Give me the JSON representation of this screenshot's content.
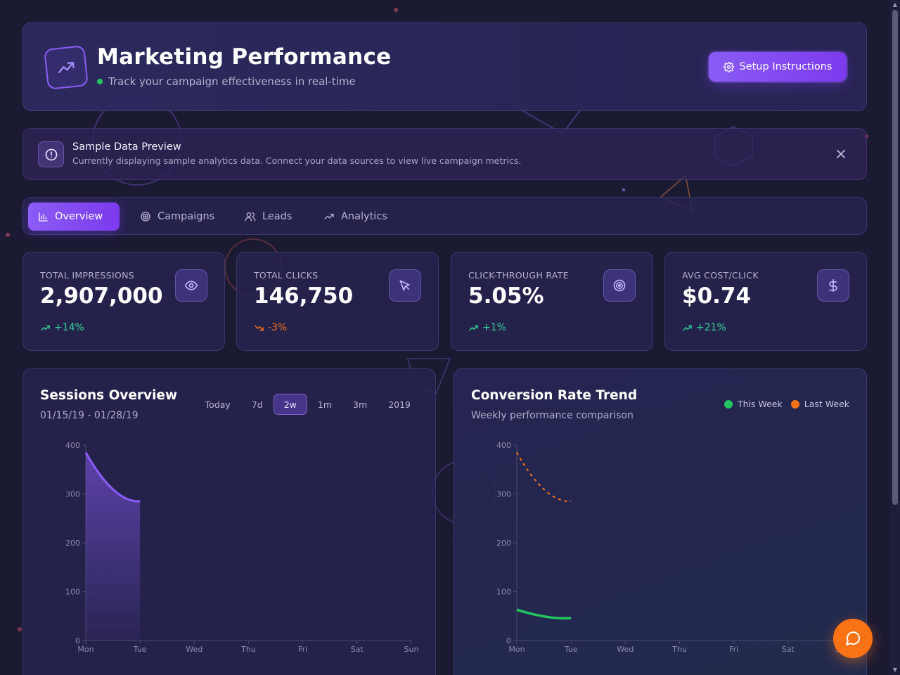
{
  "header": {
    "title": "Marketing Performance",
    "subtitle": "Track your campaign effectiveness in real-time",
    "setup_label": "Setup Instructions"
  },
  "banner": {
    "title": "Sample Data Preview",
    "text": "Currently displaying sample analytics data. Connect your data sources to view live campaign metrics."
  },
  "tabs": [
    {
      "label": "Overview",
      "icon": "bar-chart-icon",
      "active": true
    },
    {
      "label": "Campaigns",
      "icon": "target-icon",
      "active": false
    },
    {
      "label": "Leads",
      "icon": "users-icon",
      "active": false
    },
    {
      "label": "Analytics",
      "icon": "trending-up-icon",
      "active": false
    }
  ],
  "stats": [
    {
      "label": "TOTAL IMPRESSIONS",
      "value": "2,907,000",
      "change": "+14%",
      "trend": "up",
      "icon": "eye-icon"
    },
    {
      "label": "TOTAL CLICKS",
      "value": "146,750",
      "change": "-3%",
      "trend": "down",
      "icon": "cursor-icon"
    },
    {
      "label": "CLICK-THROUGH RATE",
      "value": "5.05%",
      "change": "+1%",
      "trend": "up",
      "icon": "target-icon"
    },
    {
      "label": "AVG COST/CLICK",
      "value": "$0.74",
      "change": "+21%",
      "trend": "up",
      "icon": "dollar-icon"
    }
  ],
  "sessions": {
    "title": "Sessions Overview",
    "date_range": "01/15/19 - 01/28/19",
    "ranges": [
      "Today",
      "7d",
      "2w",
      "1m",
      "3m",
      "2019"
    ],
    "active_range": "2w"
  },
  "conversion": {
    "title": "Conversion Rate Trend",
    "subtitle": "Weekly performance comparison",
    "legend": [
      {
        "label": "This Week",
        "color": "#22c55e"
      },
      {
        "label": "Last Week",
        "color": "#f97316"
      }
    ]
  },
  "chart_data": [
    {
      "type": "area",
      "title": "Sessions Overview",
      "categories": [
        "Mon",
        "Tue",
        "Wed",
        "Thu",
        "Fri",
        "Sat",
        "Sun"
      ],
      "series": [
        {
          "values": [
            385,
            285,
            null,
            null,
            null,
            null,
            null
          ]
        }
      ],
      "ylim": [
        0,
        400
      ],
      "yticks": [
        0,
        100,
        200,
        300,
        400
      ],
      "color": "#8b5cf6"
    },
    {
      "type": "line",
      "title": "Conversion Rate Trend",
      "categories": [
        "Mon",
        "Tue",
        "Wed",
        "Thu",
        "Fri",
        "Sat",
        "Sun"
      ],
      "series": [
        {
          "name": "This Week",
          "values": [
            63,
            46,
            null,
            null,
            null,
            null,
            null
          ],
          "color": "#22c55e"
        },
        {
          "name": "Last Week",
          "values": [
            385,
            285,
            null,
            null,
            null,
            null,
            null
          ],
          "color": "#f97316",
          "dashed": true
        }
      ],
      "ylim": [
        0,
        400
      ],
      "yticks": [
        0,
        100,
        200,
        300,
        400
      ]
    }
  ]
}
